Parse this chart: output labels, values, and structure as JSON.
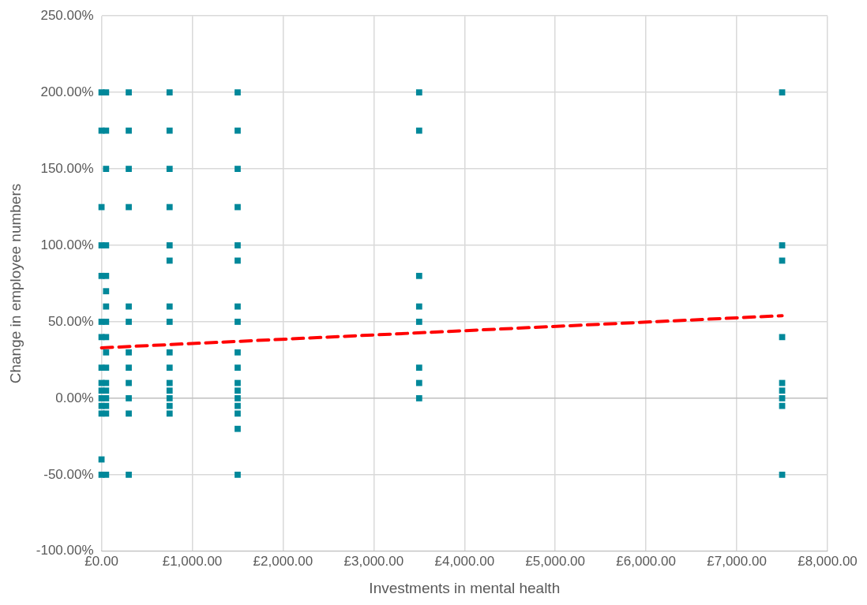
{
  "chart_data": {
    "type": "scatter",
    "xlabel": "Investments in mental health",
    "ylabel": "Change in employee numbers",
    "xlim": [
      0,
      8000
    ],
    "ylim": [
      -100,
      250
    ],
    "xticks": [
      {
        "value": 0,
        "label": "£0.00"
      },
      {
        "value": 1000,
        "label": "£1,000.00"
      },
      {
        "value": 2000,
        "label": "£2,000.00"
      },
      {
        "value": 3000,
        "label": "£3,000.00"
      },
      {
        "value": 4000,
        "label": "£4,000.00"
      },
      {
        "value": 5000,
        "label": "£5,000.00"
      },
      {
        "value": 6000,
        "label": "£6,000.00"
      },
      {
        "value": 7000,
        "label": "£7,000.00"
      },
      {
        "value": 8000,
        "label": "£8,000.00"
      }
    ],
    "yticks": [
      {
        "value": -100,
        "label": "-100.00%"
      },
      {
        "value": -50,
        "label": "-50.00%"
      },
      {
        "value": 0,
        "label": "0.00%"
      },
      {
        "value": 50,
        "label": "50.00%"
      },
      {
        "value": 100,
        "label": "100.00%"
      },
      {
        "value": 150,
        "label": "150.00%"
      },
      {
        "value": 200,
        "label": "200.00%"
      },
      {
        "value": 250,
        "label": "250.00%"
      }
    ],
    "grid": true,
    "legend": false,
    "marker": "square",
    "series": [
      {
        "color": "#00889a",
        "x": [
          0,
          0,
          0,
          0,
          0,
          0,
          0,
          0,
          0,
          0,
          0,
          0,
          0,
          0,
          0,
          50,
          50,
          50,
          50,
          50,
          50,
          50,
          50,
          50,
          50,
          50,
          50,
          50,
          50,
          50,
          50,
          50,
          300,
          300,
          300,
          300,
          300,
          300,
          300,
          300,
          300,
          300,
          300,
          300,
          750,
          750,
          750,
          750,
          750,
          750,
          750,
          750,
          750,
          750,
          750,
          750,
          750,
          750,
          750,
          1500,
          1500,
          1500,
          1500,
          1500,
          1500,
          1500,
          1500,
          1500,
          1500,
          1500,
          1500,
          1500,
          1500,
          1500,
          1500,
          1500,
          3500,
          3500,
          3500,
          3500,
          3500,
          3500,
          3500,
          3500,
          7500,
          7500,
          7500,
          7500,
          7500,
          7500,
          7500,
          7500,
          7500
        ],
        "values": [
          200,
          175,
          125,
          100,
          80,
          50,
          40,
          20,
          10,
          5,
          0,
          -5,
          -10,
          -40,
          -50,
          200,
          175,
          150,
          100,
          80,
          70,
          60,
          50,
          40,
          30,
          20,
          10,
          5,
          0,
          -5,
          -10,
          -50,
          200,
          175,
          150,
          125,
          60,
          50,
          30,
          20,
          10,
          0,
          -10,
          -50,
          200,
          175,
          150,
          125,
          100,
          90,
          60,
          50,
          30,
          20,
          10,
          5,
          0,
          -5,
          -10,
          200,
          175,
          150,
          125,
          100,
          90,
          60,
          50,
          30,
          20,
          10,
          5,
          0,
          -5,
          -10,
          -20,
          -50,
          200,
          175,
          80,
          60,
          50,
          20,
          10,
          0,
          200,
          100,
          90,
          40,
          10,
          5,
          0,
          -5,
          -50
        ]
      },
      {
        "type": "line",
        "color": "#ff0000",
        "line_style": "dashed",
        "marker": "none",
        "x": [
          0,
          7500
        ],
        "values": [
          33,
          54
        ]
      }
    ]
  }
}
